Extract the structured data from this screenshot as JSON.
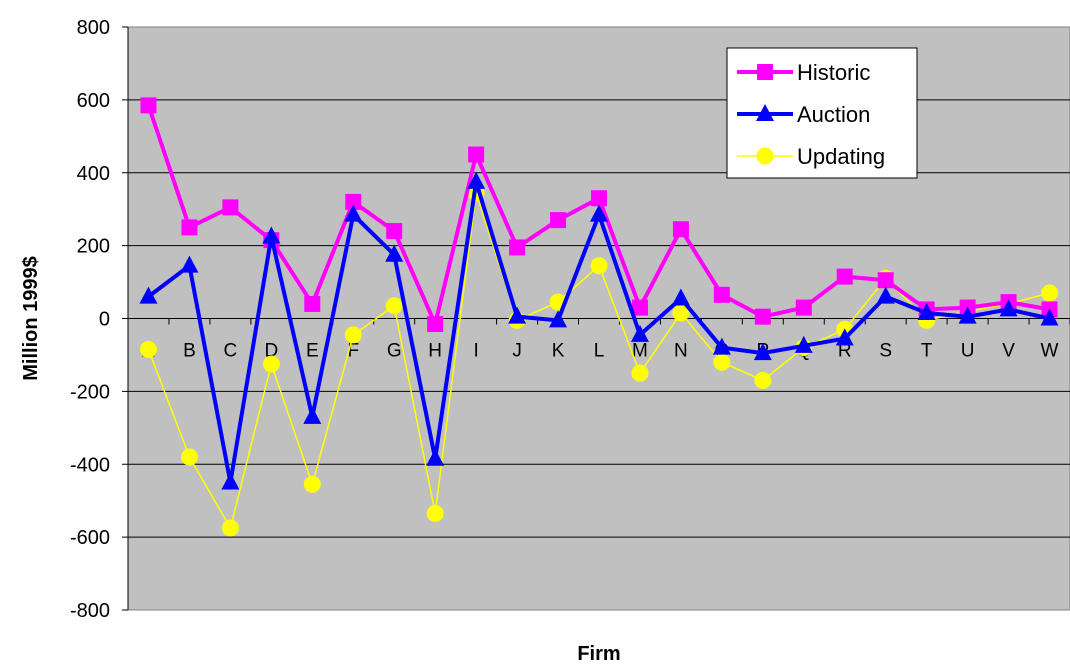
{
  "chart_data": {
    "type": "line",
    "xlabel": "Firm",
    "ylabel": "Million 1999$",
    "ylim": [
      -800,
      800
    ],
    "yticks": [
      800,
      600,
      400,
      200,
      0,
      -200,
      -400,
      -600,
      -800
    ],
    "grid": "horizontal major gridlines",
    "plot_background": "#c0c0c0",
    "legend_position": "top-right",
    "categories": [
      "A",
      "B",
      "C",
      "D",
      "E",
      "F",
      "G",
      "H",
      "I",
      "J",
      "K",
      "L",
      "M",
      "N",
      "O",
      "P",
      "Q",
      "R",
      "S",
      "T",
      "U",
      "V",
      "W"
    ],
    "series": [
      {
        "name": "Historic",
        "color": "#ff00ff",
        "marker": "square",
        "values": [
          585,
          250,
          305,
          215,
          40,
          320,
          240,
          -15,
          450,
          195,
          270,
          330,
          30,
          245,
          65,
          5,
          30,
          115,
          105,
          25,
          30,
          45,
          25
        ]
      },
      {
        "name": "Auction",
        "color": "#0000ff",
        "marker": "triangle",
        "values": [
          60,
          145,
          -450,
          225,
          -270,
          285,
          175,
          -385,
          375,
          5,
          -5,
          285,
          -45,
          55,
          -80,
          -95,
          -75,
          -55,
          60,
          15,
          5,
          25,
          0
        ]
      },
      {
        "name": "Updating",
        "color": "#ffff00",
        "marker": "circle",
        "values": [
          -85,
          -380,
          -575,
          -125,
          -455,
          -45,
          35,
          -535,
          345,
          -5,
          45,
          145,
          -150,
          15,
          -120,
          -170,
          -80,
          -30,
          110,
          -5,
          20,
          40,
          70
        ]
      }
    ]
  }
}
